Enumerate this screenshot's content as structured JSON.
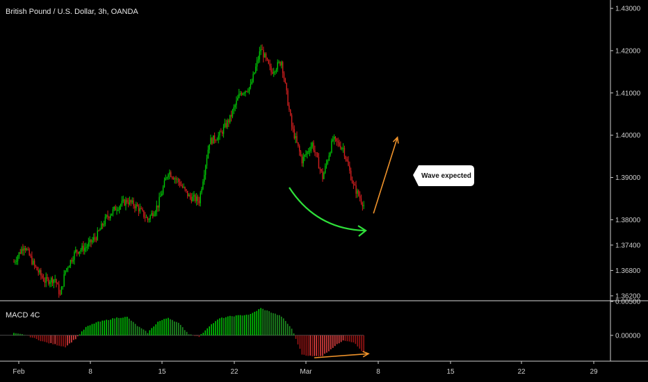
{
  "colors": {
    "background": "#000000",
    "up": "#00c805",
    "down": "#d41f1f",
    "axis": "#cfcfcf",
    "divider": "#d8d8d8",
    "orange": "#f0932b",
    "green_curve": "#2fe03a"
  },
  "chart_data": {
    "type": "candlestick",
    "title": "British Pound / U.S. Dollar, 3h, OANDA",
    "price_axis": {
      "ticks": [
        "1.43000",
        "1.42000",
        "1.41000",
        "1.40000",
        "1.39000",
        "1.38000",
        "1.37400",
        "1.36800",
        "1.36200"
      ],
      "ylim": [
        1.361,
        1.431
      ]
    },
    "time_axis": {
      "ticks": [
        "Feb",
        "8",
        "15",
        "22",
        "Mar",
        "8",
        "15",
        "22",
        "29"
      ]
    },
    "price_path": {
      "description_free": true,
      "date_range": [
        "Feb 1",
        "Mar 7"
      ],
      "keypoints": [
        {
          "date": "Feb 1",
          "price": 1.37
        },
        {
          "date": "Feb 2",
          "price": 1.374
        },
        {
          "date": "Feb 3",
          "price": 1.369
        },
        {
          "date": "Feb 4",
          "price": 1.3655
        },
        {
          "date": "Feb 5",
          "price": 1.366
        },
        {
          "date": "Feb 5",
          "price": 1.362
        },
        {
          "date": "Feb 6",
          "price": 1.368
        },
        {
          "date": "Feb 7",
          "price": 1.3725
        },
        {
          "date": "Feb 8",
          "price": 1.3735
        },
        {
          "date": "Feb 9",
          "price": 1.376
        },
        {
          "date": "Feb 10",
          "price": 1.3805
        },
        {
          "date": "Feb 11",
          "price": 1.383
        },
        {
          "date": "Feb 12",
          "price": 1.3845
        },
        {
          "date": "Feb 13",
          "price": 1.383
        },
        {
          "date": "Feb 14",
          "price": 1.38
        },
        {
          "date": "Feb 15",
          "price": 1.3835
        },
        {
          "date": "Feb 16",
          "price": 1.3915
        },
        {
          "date": "Feb 17",
          "price": 1.389
        },
        {
          "date": "Feb 18",
          "price": 1.3855
        },
        {
          "date": "Feb 19",
          "price": 1.3845
        },
        {
          "date": "Feb 20",
          "price": 1.3985
        },
        {
          "date": "Feb 21",
          "price": 1.4
        },
        {
          "date": "Feb 22",
          "price": 1.404
        },
        {
          "date": "Feb 23",
          "price": 1.41
        },
        {
          "date": "Feb 24",
          "price": 1.4115
        },
        {
          "date": "Feb 25",
          "price": 1.4205
        },
        {
          "date": "Feb 26",
          "price": 1.415
        },
        {
          "date": "Feb 27",
          "price": 1.4175
        },
        {
          "date": "Feb 28",
          "price": 1.402
        },
        {
          "date": "Mar 1",
          "price": 1.394
        },
        {
          "date": "Mar 2",
          "price": 1.398
        },
        {
          "date": "Mar 3",
          "price": 1.39
        },
        {
          "date": "Mar 4",
          "price": 1.399
        },
        {
          "date": "Mar 5",
          "price": 1.397
        },
        {
          "date": "Mar 6",
          "price": 1.388
        },
        {
          "date": "Mar 7",
          "price": 1.3835
        }
      ]
    },
    "indicator": {
      "name": "MACD 4C",
      "ticks": [
        "0.00500",
        "0.00000"
      ],
      "ylim": [
        -0.0036,
        0.005
      ],
      "histogram_keypoints": [
        {
          "date": "Feb 1",
          "value": 0.0003
        },
        {
          "date": "Feb 2",
          "value": 0.0001
        },
        {
          "date": "Feb 4",
          "value": -0.001
        },
        {
          "date": "Feb 6",
          "value": -0.0017
        },
        {
          "date": "Feb 7",
          "value": -0.0005
        },
        {
          "date": "Feb 8",
          "value": 0.0012
        },
        {
          "date": "Feb 9",
          "value": 0.0019
        },
        {
          "date": "Feb 11",
          "value": 0.0026
        },
        {
          "date": "Feb 12",
          "value": 0.0027
        },
        {
          "date": "Feb 13",
          "value": 0.0014
        },
        {
          "date": "Feb 14",
          "value": 0.0004
        },
        {
          "date": "Feb 15",
          "value": 0.002
        },
        {
          "date": "Feb 16",
          "value": 0.0026
        },
        {
          "date": "Feb 17",
          "value": 0.0018
        },
        {
          "date": "Feb 18",
          "value": 0.0002
        },
        {
          "date": "Feb 19",
          "value": -0.0002
        },
        {
          "date": "Feb 20",
          "value": 0.0014
        },
        {
          "date": "Feb 21",
          "value": 0.0025
        },
        {
          "date": "Feb 22",
          "value": 0.0028
        },
        {
          "date": "Feb 24",
          "value": 0.0031
        },
        {
          "date": "Feb 25",
          "value": 0.004
        },
        {
          "date": "Feb 26",
          "value": 0.0034
        },
        {
          "date": "Feb 27",
          "value": 0.0028
        },
        {
          "date": "Feb 28",
          "value": 0.001
        },
        {
          "date": "Mar 1",
          "value": -0.0028
        },
        {
          "date": "Mar 2",
          "value": -0.0031
        },
        {
          "date": "Mar 3",
          "value": -0.003
        },
        {
          "date": "Mar 4",
          "value": -0.0018
        },
        {
          "date": "Mar 5",
          "value": -0.0007
        },
        {
          "date": "Mar 6",
          "value": -0.001
        },
        {
          "date": "Mar 7",
          "value": -0.0026
        }
      ]
    },
    "annotations": [
      {
        "kind": "callout",
        "text": "Wave expected"
      },
      {
        "kind": "curved-arrow",
        "color": "green"
      },
      {
        "kind": "arrow",
        "color": "orange",
        "from": {
          "date": "Mar 7",
          "price": 1.3815
        },
        "to": {
          "date": "Mar 10",
          "price": 1.3995
        }
      },
      {
        "kind": "arrow",
        "color": "orange",
        "from": {
          "date": "Mar 3",
          "value": -0.003
        },
        "to": {
          "date": "Mar 8",
          "value": -0.0024
        }
      }
    ]
  }
}
